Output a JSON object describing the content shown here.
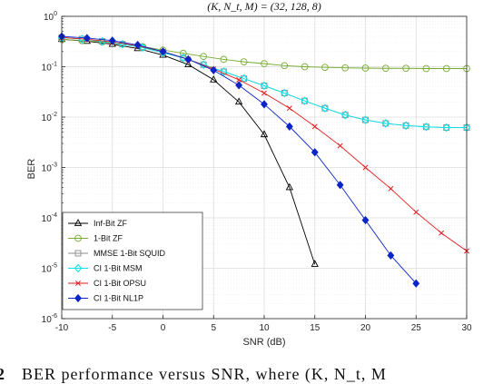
{
  "caption": {
    "number": "2",
    "text": "BER performance versus SNR, where (K, N_t, M"
  },
  "chart_data": {
    "type": "line",
    "title": "(K, N_t, M) = (32, 128, 8)",
    "xlabel": "SNR (dB)",
    "ylabel": "BER",
    "xlim": [
      -10,
      30
    ],
    "ylim": [
      1e-06,
      1
    ],
    "yscale": "log",
    "grid": true,
    "legend_position": "bottom-left",
    "xticks": [
      "-10",
      "-5",
      "0",
      "5",
      "10",
      "15",
      "20",
      "25",
      "30"
    ],
    "yticks": [
      {
        "base": "10",
        "exp": "-6"
      },
      {
        "base": "10",
        "exp": "-5"
      },
      {
        "base": "10",
        "exp": "-4"
      },
      {
        "base": "10",
        "exp": "-3"
      },
      {
        "base": "10",
        "exp": "-2"
      },
      {
        "base": "10",
        "exp": "-1"
      },
      {
        "base": "10",
        "exp": "0"
      }
    ],
    "series": [
      {
        "name": "Inf-Bit ZF",
        "color": "#000000",
        "marker": "triangle",
        "x": [
          -10,
          -7.5,
          -5,
          -2.5,
          0,
          2.5,
          5,
          7.5,
          10,
          12.5,
          15
        ],
        "y": [
          0.35,
          0.32,
          0.28,
          0.23,
          0.17,
          0.11,
          0.055,
          0.02,
          0.0045,
          0.0004,
          1.2e-05
        ]
      },
      {
        "name": "1-Bit ZF",
        "color": "#77ac30",
        "marker": "circle",
        "x": [
          -10,
          -8,
          -6,
          -4,
          -2,
          0,
          2,
          4,
          6,
          8,
          10,
          12,
          14,
          16,
          18,
          20,
          22,
          24,
          26,
          28,
          30
        ],
        "y": [
          0.35,
          0.33,
          0.31,
          0.28,
          0.25,
          0.215,
          0.185,
          0.16,
          0.14,
          0.125,
          0.115,
          0.105,
          0.1,
          0.097,
          0.095,
          0.094,
          0.093,
          0.093,
          0.092,
          0.092,
          0.092
        ]
      },
      {
        "name": "MMSE 1-Bit SQUID",
        "color": "#8c8c8c",
        "marker": "square",
        "x": [
          -10,
          -8,
          -6,
          -4,
          -2,
          0,
          2,
          4,
          6,
          8,
          10,
          12,
          14,
          16,
          18,
          20,
          22,
          24,
          26,
          28,
          30
        ],
        "y": [
          0.38,
          0.355,
          0.32,
          0.28,
          0.24,
          0.19,
          0.15,
          0.11,
          0.08,
          0.058,
          0.042,
          0.03,
          0.021,
          0.015,
          0.011,
          0.0088,
          0.0075,
          0.0068,
          0.0064,
          0.0062,
          0.0062
        ]
      },
      {
        "name": "CI 1-Bit MSM",
        "color": "#00e5ee",
        "marker": "diamond",
        "x": [
          -10,
          -8,
          -6,
          -4,
          -2,
          0,
          2,
          4,
          6,
          8,
          10,
          12,
          14,
          16,
          18,
          20,
          22,
          24,
          26,
          28,
          30
        ],
        "y": [
          0.38,
          0.355,
          0.32,
          0.28,
          0.24,
          0.19,
          0.15,
          0.11,
          0.08,
          0.058,
          0.042,
          0.03,
          0.021,
          0.015,
          0.011,
          0.0088,
          0.0075,
          0.0068,
          0.0064,
          0.0062,
          0.0062
        ]
      },
      {
        "name": "CI 1-Bit OPSU",
        "color": "#e31a1c",
        "marker": "x",
        "x": [
          -10,
          -7.5,
          -5,
          -2.5,
          0,
          2.5,
          5,
          7.5,
          10,
          12.5,
          15,
          17.5,
          20,
          22.5,
          25,
          27.5,
          30
        ],
        "y": [
          0.38,
          0.35,
          0.31,
          0.26,
          0.2,
          0.14,
          0.09,
          0.055,
          0.03,
          0.015,
          0.0065,
          0.0027,
          0.001,
          0.00038,
          0.00013,
          5e-05,
          2.2e-05
        ]
      },
      {
        "name": "CI 1-Bit NL1P",
        "color": "#0a24c8",
        "marker": "filled-diamond",
        "x": [
          -10,
          -7.5,
          -5,
          -2.5,
          0,
          2.5,
          5,
          7.5,
          10,
          12.5,
          15,
          17.5,
          20,
          22.5,
          25
        ],
        "y": [
          0.4,
          0.37,
          0.33,
          0.27,
          0.2,
          0.14,
          0.085,
          0.043,
          0.018,
          0.0065,
          0.002,
          0.00045,
          9e-05,
          1.8e-05,
          5e-06
        ]
      }
    ]
  }
}
